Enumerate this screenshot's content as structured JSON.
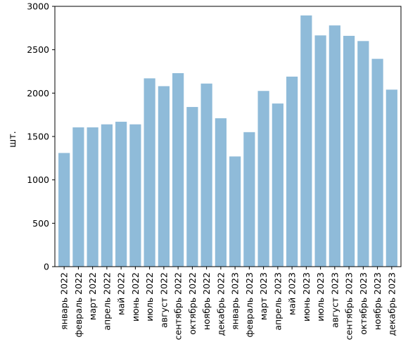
{
  "chart_data": {
    "type": "bar",
    "title": "",
    "xlabel": "",
    "ylabel": "шт.",
    "ylim": [
      0,
      3000
    ],
    "yticks": [
      0,
      500,
      1000,
      1500,
      2000,
      2500,
      3000
    ],
    "grid": false,
    "bar_color": "#8fbbd9",
    "categories": [
      "январь 2022",
      "февраль 2022",
      "март 2022",
      "апрель 2022",
      "май 2022",
      "июнь 2022",
      "июль 2022",
      "август 2022",
      "сентябрь 2022",
      "октябрь 2022",
      "ноябрь 2022",
      "декабрь 2022",
      "январь 2023",
      "февраль 2023",
      "март 2023",
      "апрель 2023",
      "май 2023",
      "июнь 2023",
      "июль 2023",
      "август 2023",
      "сентябрь 2023",
      "октябрь 2023",
      "ноябрь 2023",
      "декабрь 2023"
    ],
    "values": [
      1310,
      1605,
      1605,
      1640,
      1670,
      1640,
      2170,
      2080,
      2230,
      1840,
      2110,
      1710,
      1270,
      1550,
      2025,
      1880,
      2190,
      2895,
      2665,
      2780,
      2660,
      2600,
      2395,
      2040
    ]
  }
}
